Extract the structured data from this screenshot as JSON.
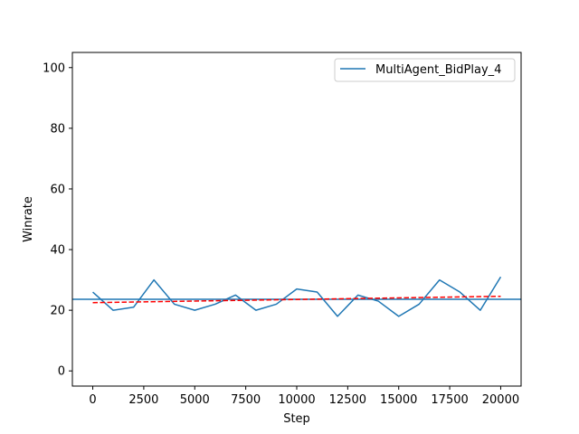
{
  "chart_data": {
    "type": "line",
    "xlabel": "Step",
    "ylabel": "Winrate",
    "xlim": [
      -1000,
      21000
    ],
    "ylim": [
      -5,
      105
    ],
    "xticks": [
      0,
      2500,
      5000,
      7500,
      10000,
      12500,
      15000,
      17500,
      20000
    ],
    "yticks": [
      0,
      20,
      40,
      60,
      80,
      100
    ],
    "grid": false,
    "legend_position": "top-right",
    "series": [
      {
        "name": "MultiAgent_BidPlay_4",
        "color": "#1f77b4",
        "x": [
          0,
          1000,
          2000,
          3000,
          4000,
          5000,
          6000,
          7000,
          8000,
          9000,
          10000,
          11000,
          12000,
          13000,
          14000,
          15000,
          16000,
          17000,
          18000,
          19000,
          20000
        ],
        "y": [
          26,
          20,
          21,
          30,
          22,
          20,
          22,
          25,
          20,
          22,
          27,
          26,
          18,
          25,
          23,
          18,
          22,
          30,
          26,
          20,
          31
        ]
      }
    ],
    "reference_lines": [
      {
        "kind": "horizontal",
        "y": 23.6,
        "color": "#1f77b4"
      }
    ],
    "trend_line": {
      "x": [
        0,
        20000
      ],
      "y": [
        22.5,
        24.6
      ],
      "color": "#ff0000",
      "style": "dashed"
    }
  }
}
